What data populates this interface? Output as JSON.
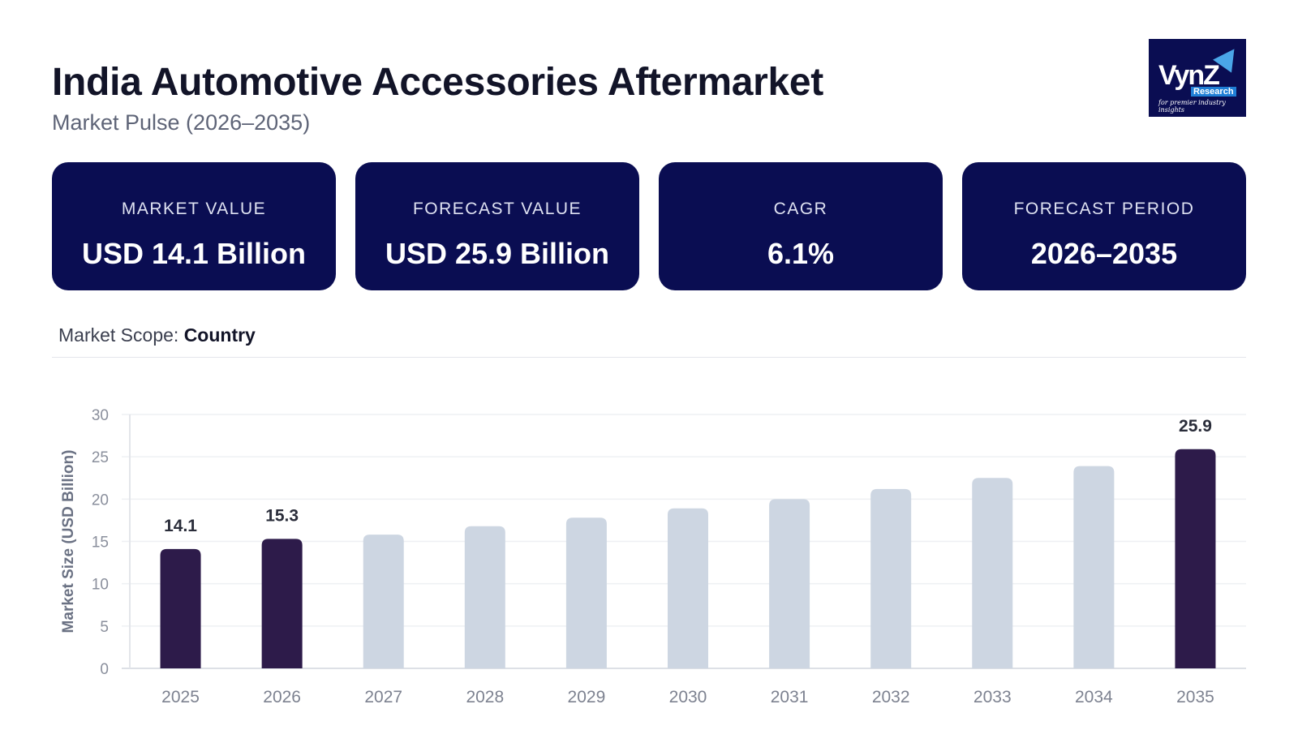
{
  "header": {
    "title": "India Automotive Accessories Aftermarket",
    "subtitle": "Market Pulse (2026–2035)"
  },
  "logo": {
    "text": "VynZ",
    "sub": "Research",
    "tagline": "for premier industry insights"
  },
  "cards": [
    {
      "label": "MARKET VALUE",
      "value": "USD 14.1 Billion"
    },
    {
      "label": "FORECAST VALUE",
      "value": "USD 25.9 Billion"
    },
    {
      "label": "CAGR",
      "value": "6.1%"
    },
    {
      "label": "FORECAST PERIOD",
      "value": "2026–2035"
    }
  ],
  "scope": {
    "label": "Market Scope:",
    "value": "Country"
  },
  "colors": {
    "highlight": "#2d1b4a",
    "muted": "#cdd6e2",
    "card": "#0a0d52"
  },
  "chart_data": {
    "type": "bar",
    "ylabel": "Market Size (USD Billion)",
    "ylim": [
      0,
      30
    ],
    "yticks": [
      0,
      5,
      10,
      15,
      20,
      25,
      30
    ],
    "grid": true,
    "categories": [
      "2025",
      "2026",
      "2027",
      "2028",
      "2029",
      "2030",
      "2031",
      "2032",
      "2033",
      "2034",
      "2035"
    ],
    "values": [
      14.1,
      15.3,
      15.8,
      16.8,
      17.8,
      18.9,
      20.0,
      21.2,
      22.5,
      23.9,
      25.9
    ],
    "highlighted": [
      "2025",
      "2026",
      "2035"
    ],
    "data_labels": {
      "2025": "14.1",
      "2026": "15.3",
      "2035": "25.9"
    }
  }
}
